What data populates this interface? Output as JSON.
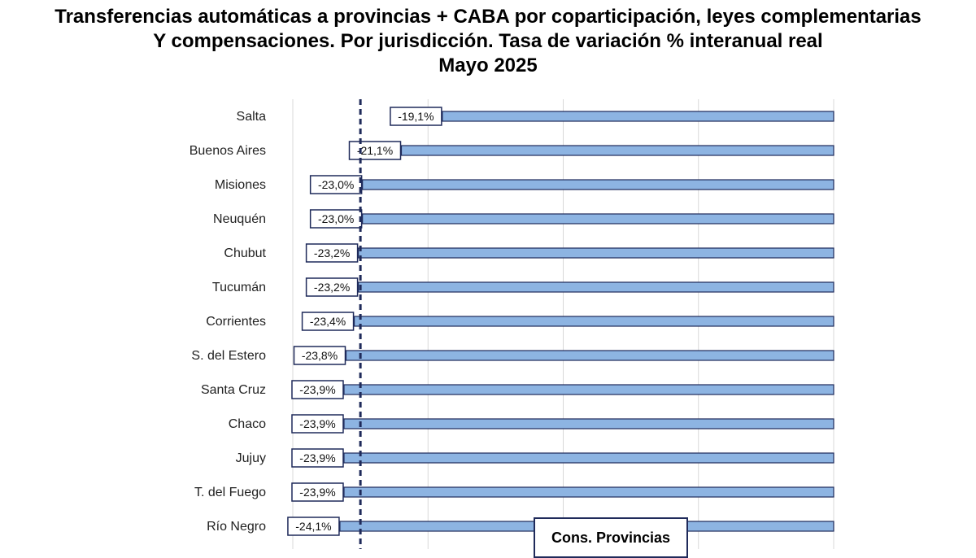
{
  "title": {
    "line1": "Transferencias  automáticas  a provincias  + CABA  por coparticipación,  leyes complementarias",
    "line2": "Y compensaciones.  Por jurisdicción.  Tasa de variación  % interanual  real",
    "line3": "Mayo  2025"
  },
  "legend": {
    "reference_label": "Cons. Provincias"
  },
  "colors": {
    "bar_fill": "#8db4e2",
    "bar_stroke": "#1f2a5a",
    "reference_line": "#1f2a5a"
  },
  "chart_data": {
    "type": "bar",
    "orientation": "horizontal",
    "categories": [
      "Salta",
      "Buenos Aires",
      "Misiones",
      "Neuquén",
      "Chubut",
      "Tucumán",
      "Corrientes",
      "S. del Estero",
      "Santa Cruz",
      "Chaco",
      "Jujuy",
      "T. del Fuego",
      "Río Negro"
    ],
    "values": [
      -19.1,
      -21.1,
      -23.0,
      -23.0,
      -23.2,
      -23.2,
      -23.4,
      -23.8,
      -23.9,
      -23.9,
      -23.9,
      -23.9,
      -24.1
    ],
    "value_labels": [
      "-19,1%",
      "-21,1%",
      "-23,0%",
      "-23,0%",
      "-23,2%",
      "-23,2%",
      "-23,4%",
      "-23,8%",
      "-23,9%",
      "-23,9%",
      "-23,9%",
      "-23,9%",
      "-24,1%"
    ],
    "reference_line": {
      "name": "Cons. Provincias",
      "value": -23.1,
      "style": "dashed"
    },
    "grid": true,
    "xlim": [
      -26.4,
      0
    ]
  }
}
